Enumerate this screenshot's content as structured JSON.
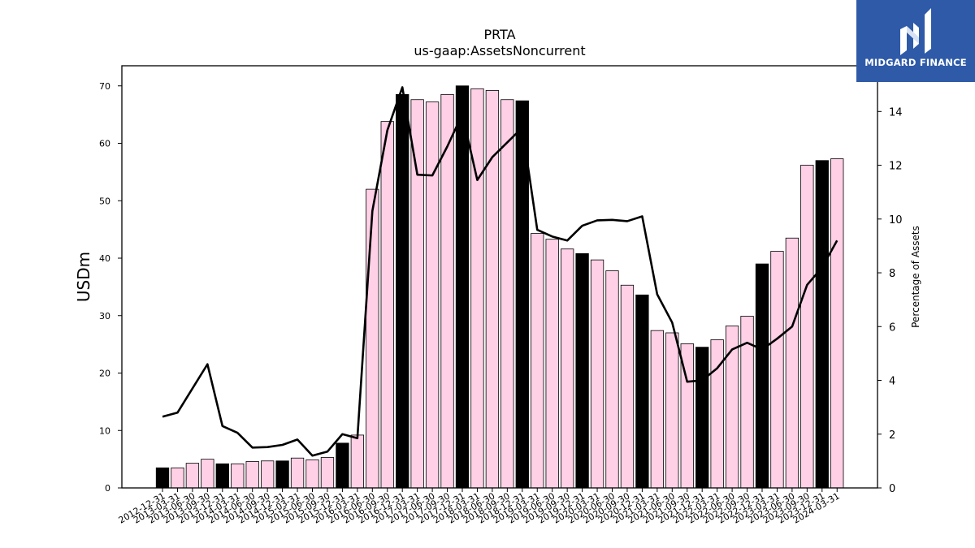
{
  "brand": {
    "name": "MIDGARD FINANCE",
    "bg_color": "#2e5aa8",
    "mark_icon": "midgard-logo-icon"
  },
  "chart_data": {
    "type": "bar",
    "title": "PRTA",
    "subtitle": "us-gaap:AssetsNoncurrent",
    "ylabel": "USDm",
    "y2label": "Percentage of Assets",
    "ylim": [
      0,
      73.5
    ],
    "y2lim": [
      0,
      15.7
    ],
    "yticks": [
      0,
      10,
      20,
      30,
      40,
      50,
      60,
      70
    ],
    "y2ticks": [
      0,
      2,
      4,
      6,
      8,
      10,
      12,
      14
    ],
    "grid": false,
    "colors": {
      "annual_bar": "#000000",
      "quarter_bar": "#ffd0e6",
      "bar_edge": "#000000",
      "line": "#000000"
    },
    "categories": [
      "2012-12-31",
      "2013-03-31",
      "2013-06-30",
      "2013-09-30",
      "2013-12-31",
      "2014-03-31",
      "2014-06-30",
      "2014-09-30",
      "2014-12-31",
      "2015-03-31",
      "2015-06-30",
      "2015-09-30",
      "2015-12-31",
      "2016-03-31",
      "2016-06-30",
      "2016-09-30",
      "2016-12-31",
      "2017-03-31",
      "2017-06-30",
      "2017-09-30",
      "2017-12-31",
      "2018-03-31",
      "2018-06-30",
      "2018-09-30",
      "2018-12-31",
      "2019-03-31",
      "2019-06-30",
      "2019-09-30",
      "2019-12-31",
      "2020-03-31",
      "2020-06-30",
      "2020-09-30",
      "2020-12-31",
      "2021-03-31",
      "2021-06-30",
      "2021-09-30",
      "2021-12-31",
      "2022-03-31",
      "2022-06-30",
      "2022-09-30",
      "2022-12-31",
      "2023-03-31",
      "2023-06-30",
      "2023-09-30",
      "2023-12-31",
      "2024-03-31"
    ],
    "series": [
      {
        "kind": "bar",
        "values": [
          3.5,
          3.5,
          4.3,
          5.0,
          4.2,
          4.2,
          4.6,
          4.7,
          4.7,
          5.2,
          4.9,
          5.3,
          7.8,
          9.2,
          52.0,
          63.8,
          68.5,
          67.6,
          67.2,
          68.5,
          70.0,
          69.5,
          69.2,
          67.6,
          67.4,
          44.3,
          43.3,
          41.6,
          40.8,
          39.7,
          37.8,
          35.3,
          33.6,
          27.4,
          27.0,
          25.1,
          24.5,
          25.8,
          28.2,
          29.9,
          39.0,
          41.2,
          43.5,
          56.2,
          57.0,
          57.3
        ],
        "annual": [
          true,
          false,
          false,
          false,
          true,
          false,
          false,
          false,
          true,
          false,
          false,
          false,
          true,
          false,
          false,
          false,
          true,
          false,
          false,
          false,
          true,
          false,
          false,
          false,
          true,
          false,
          false,
          false,
          true,
          false,
          false,
          false,
          true,
          false,
          false,
          false,
          true,
          false,
          false,
          false,
          true,
          false,
          false,
          false,
          true,
          false
        ]
      },
      {
        "kind": "line",
        "axis": "right",
        "values": [
          2.65,
          2.8,
          3.7,
          4.6,
          2.3,
          2.05,
          1.5,
          1.52,
          1.6,
          1.8,
          1.2,
          1.35,
          2.0,
          1.85,
          10.3,
          13.3,
          14.9,
          11.65,
          11.62,
          12.7,
          13.9,
          11.45,
          12.3,
          12.85,
          13.4,
          9.6,
          9.35,
          9.2,
          9.75,
          9.95,
          9.97,
          9.92,
          10.1,
          7.2,
          6.15,
          3.95,
          4.0,
          4.45,
          5.15,
          5.4,
          5.15,
          5.55,
          6.0,
          7.55,
          8.2,
          9.2
        ]
      }
    ]
  }
}
